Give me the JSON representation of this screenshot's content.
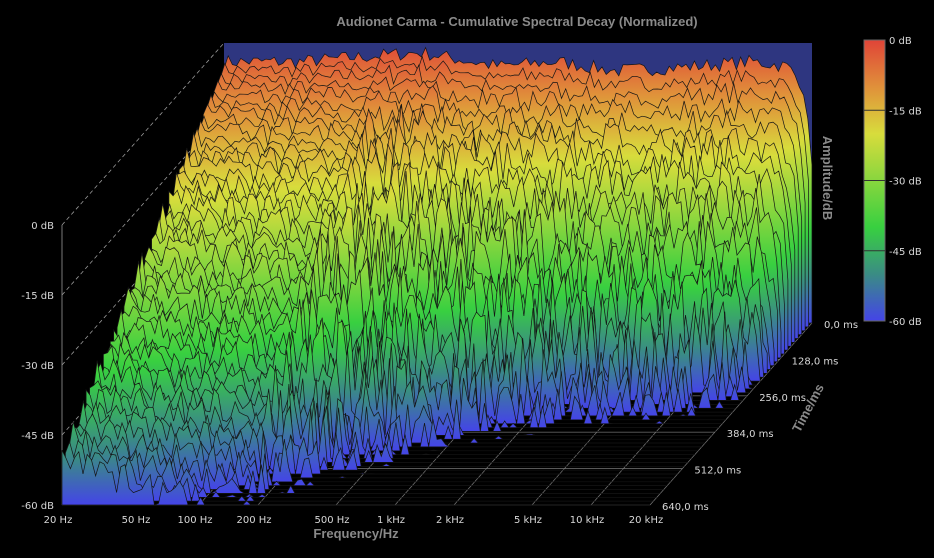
{
  "chart_data": {
    "type": "waterfall",
    "title": "Audionet Carma - Cumulative Spectral Decay (Normalized)",
    "xlabel": "Frequency/Hz",
    "ylabel": "Amplitude/dB",
    "zlabel": "Time/ms",
    "x_scale": "log",
    "xlim": [
      20,
      20000
    ],
    "ylim": [
      -60,
      0
    ],
    "zlim": [
      0,
      640
    ],
    "x_ticks": [
      "20 Hz",
      "50 Hz",
      "100 Hz",
      "200 Hz",
      "500 Hz",
      "1 kHz",
      "2 kHz",
      "5 kHz",
      "10 kHz",
      "20 kHz"
    ],
    "x_tick_values": [
      20,
      50,
      100,
      200,
      500,
      1000,
      2000,
      5000,
      10000,
      20000
    ],
    "y_ticks": [
      "0 dB",
      "-15 dB",
      "-30 dB",
      "-45 dB",
      "-60 dB"
    ],
    "y_tick_values": [
      0,
      -15,
      -30,
      -45,
      -60
    ],
    "z_ticks": [
      "0,0 ms",
      "128,0 ms",
      "256,0 ms",
      "384,0 ms",
      "512,0 ms",
      "640,0 ms"
    ],
    "z_tick_values": [
      0,
      128,
      256,
      384,
      512,
      640
    ],
    "colorbar": {
      "ticks": [
        "0 dB",
        "-15 dB",
        "-30 dB",
        "-45 dB",
        "-60 dB"
      ],
      "stops": [
        {
          "db": 0,
          "color": "#e04438"
        },
        {
          "db": -10,
          "color": "#e0903a"
        },
        {
          "db": -20,
          "color": "#d8dc3c"
        },
        {
          "db": -40,
          "color": "#38d040"
        },
        {
          "db": -50,
          "color": "#3a8c84"
        },
        {
          "db": -60,
          "color": "#4444e8"
        }
      ]
    },
    "initial_spectrum": {
      "freq": [
        20,
        50,
        100,
        200,
        500,
        1000,
        2000,
        5000,
        10000,
        15000,
        18000,
        20000
      ],
      "db": [
        -4,
        -4,
        -3,
        -2,
        -5,
        -4,
        -6,
        -5,
        -4,
        -5,
        -9,
        -25
      ]
    },
    "decay_rate_db_per_ms": {
      "freq": [
        20,
        100,
        500,
        2000,
        20000
      ],
      "rate": [
        0.07,
        0.09,
        0.12,
        0.16,
        0.2
      ]
    },
    "slice_count": 48,
    "back_wall_color": "#2e3680"
  }
}
